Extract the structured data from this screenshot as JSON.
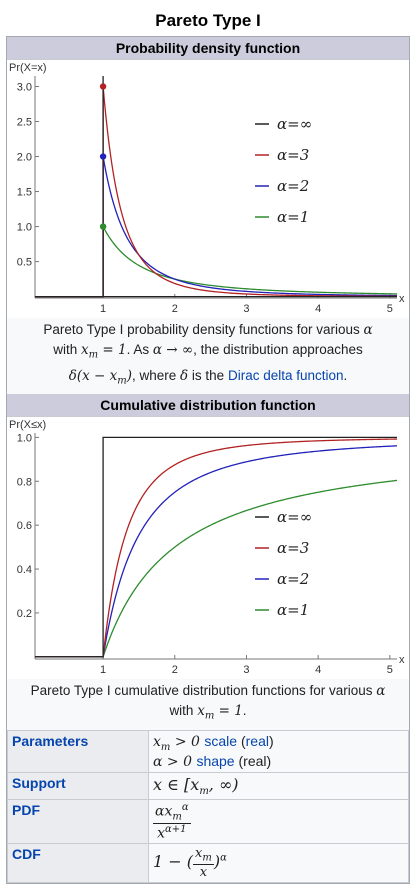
{
  "title": "Pareto Type I",
  "pdf_section": {
    "heading": "Probability density function",
    "caption": {
      "part1": "Pareto Type I probability density functions for various ",
      "alpha": "α",
      "part2": "with ",
      "xm_eq": "x",
      "xm_sub": "m",
      "eq_one": " = 1",
      "part3": ". As ",
      "limit": "α → ∞",
      "part4": ", the distribution approaches ",
      "delta": "δ(x − x",
      "delta_sub": "m",
      "delta_close": ")",
      "part5": ", where ",
      "delta_sym": "δ",
      "part6": " is the ",
      "link": "Dirac delta function",
      "end": "."
    }
  },
  "cdf_section": {
    "heading": "Cumulative distribution function",
    "caption": {
      "part1": "Pareto Type I cumulative distribution functions for various ",
      "alpha": "α",
      "part2": "with ",
      "xm": "x",
      "xm_sub": "m",
      "eq_one": " = 1",
      "end": "."
    }
  },
  "chart_data": [
    {
      "type": "line",
      "ylabel": "Pr(X=x)",
      "xlabel": "x",
      "xlim": [
        0.05,
        5.1
      ],
      "ylim": [
        -0.02,
        3.15
      ],
      "x_ticks": [
        1,
        2,
        3,
        4,
        5
      ],
      "y_ticks": [
        0.5,
        1.0,
        1.5,
        2.0,
        2.5,
        3.0
      ],
      "y_tick_labels": [
        "0.5",
        "1.0",
        "1.5",
        "2.0",
        "2.5",
        "3.0"
      ],
      "series": [
        {
          "name": "α=∞",
          "alpha": "inf",
          "color": "#222222"
        },
        {
          "name": "α=3",
          "alpha": 3,
          "color": "#b22222"
        },
        {
          "name": "α=2",
          "alpha": 2,
          "color": "#2222bb"
        },
        {
          "name": "α=1",
          "alpha": 1,
          "color": "#2e8b2e"
        }
      ],
      "points": [
        {
          "x": 1,
          "y": 3,
          "color": "#b22222"
        },
        {
          "x": 1,
          "y": 2,
          "color": "#2222bb"
        },
        {
          "x": 1,
          "y": 1,
          "color": "#2e8b2e"
        }
      ],
      "legend_position": "right"
    },
    {
      "type": "line",
      "ylabel": "Pr(X≤x)",
      "xlabel": "x",
      "xlim": [
        0.05,
        5.1
      ],
      "ylim": [
        -0.01,
        1.02
      ],
      "x_ticks": [
        1,
        2,
        3,
        4,
        5
      ],
      "y_ticks": [
        0.2,
        0.4,
        0.6,
        0.8,
        1.0
      ],
      "y_tick_labels": [
        "0.2",
        "0.4",
        "0.6",
        "0.8",
        "1.0"
      ],
      "series": [
        {
          "name": "α=∞",
          "alpha": "inf",
          "color": "#222222"
        },
        {
          "name": "α=3",
          "alpha": 3,
          "color": "#b22222"
        },
        {
          "name": "α=2",
          "alpha": 2,
          "color": "#2222bb"
        },
        {
          "name": "α=1",
          "alpha": 1,
          "color": "#2e8b2e"
        }
      ],
      "legend_position": "right"
    }
  ],
  "params": {
    "parameters": {
      "label": "Parameters",
      "line1_math": "x",
      "line1_sub": "m",
      "line1_rel": " > 0 ",
      "line1_link": "scale",
      "line1_link2": "real",
      "line2_math": "α > 0 ",
      "line2_link": "shape",
      "line2_rest": " (real)"
    },
    "support": {
      "label": "Support",
      "math": "x ∈ [x",
      "sub": "m",
      "close": ", ∞)"
    },
    "pdf": {
      "label": "PDF",
      "num": "αx",
      "num_sub": "m",
      "num_sup": "α",
      "den": "x",
      "den_sup": "α+1"
    },
    "cdf": {
      "label": "CDF",
      "prefix": "1 − (",
      "num": "x",
      "num_sub": "m",
      "den": "x",
      "close": ")",
      "sup": "α"
    }
  }
}
